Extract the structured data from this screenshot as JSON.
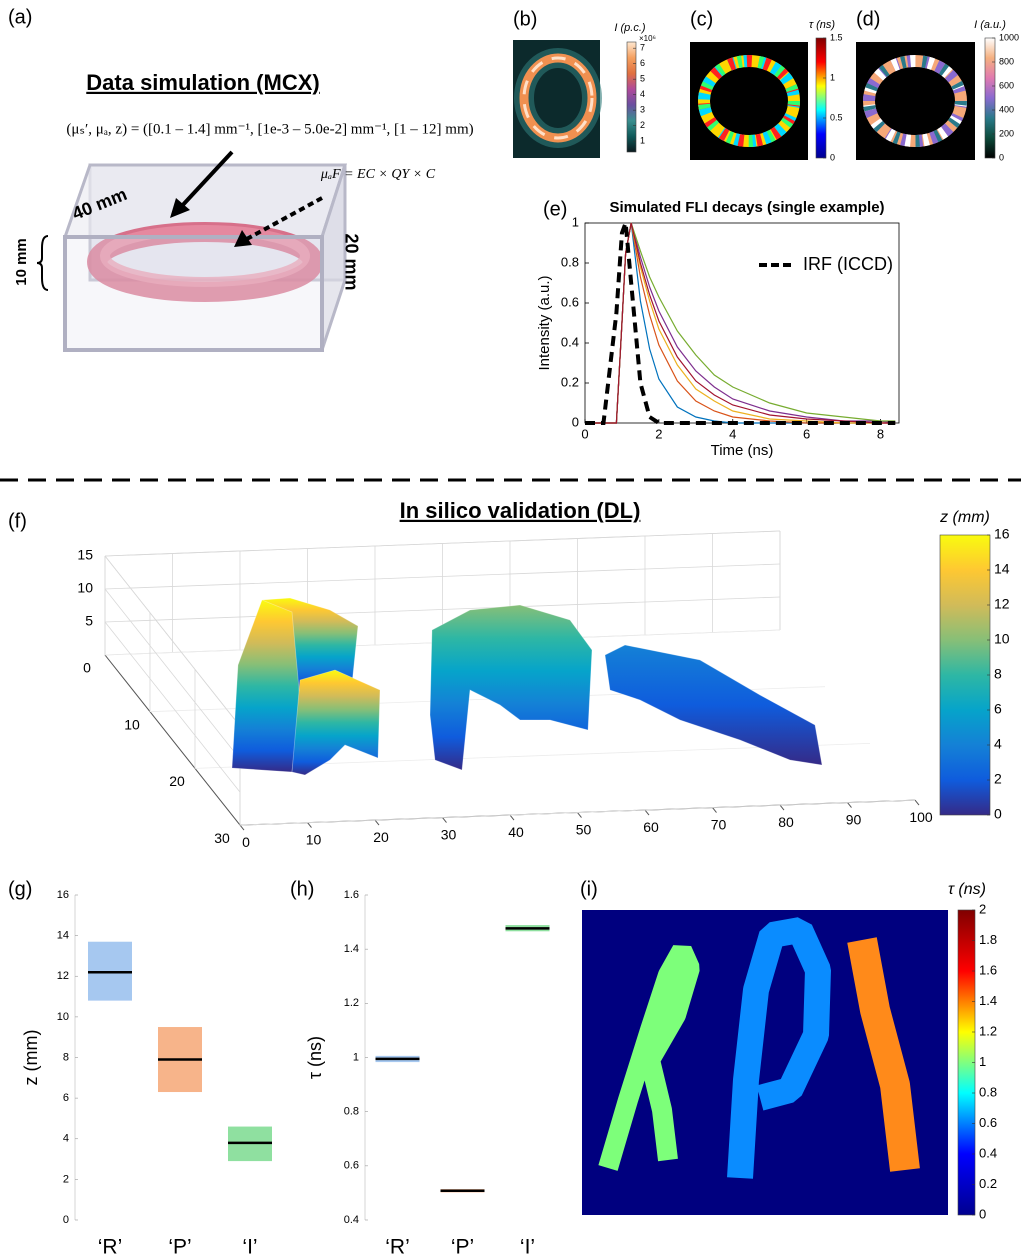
{
  "panel_labels": [
    "(a)",
    "(b)",
    "(c)",
    "(d)",
    "(e)",
    "(f)",
    "(g)",
    "(h)",
    "(i)"
  ],
  "panel_a": {
    "title": "Data simulation (MCX)",
    "parameters": "(μₛ′, μₐ, z) = ([0.1 – 1.4] mm⁻¹, [1e-3 – 5.0e-2] mm⁻¹, [1 – 12] mm)",
    "absorption": "μₐF = EC × QY × C",
    "width": "40 mm",
    "height_top": "10 mm",
    "depth": "20 mm"
  },
  "chart_data": [
    {
      "type": "colorbar",
      "title": "I (p.c.)",
      "exponent": "×10⁶",
      "ylim": [
        0.3,
        7.4
      ],
      "yticks": [
        1,
        2,
        3,
        4,
        5,
        6,
        7
      ],
      "colors": [
        "#0b1a1e",
        "#0f5a5a",
        "#3a8f8f",
        "#6a4fa0",
        "#b04a9a",
        "#e07040",
        "#f5a060",
        "#ffe8d0"
      ]
    },
    {
      "type": "colorbar",
      "title": "τ (ns)",
      "ylim": [
        0,
        1.5
      ],
      "yticks": [
        0,
        0.5,
        1,
        1.5
      ],
      "colors": [
        "#00008f",
        "#0000ff",
        "#00ffff",
        "#ffff00",
        "#ff0000",
        "#800000"
      ]
    },
    {
      "type": "colorbar",
      "title": "I (a.u.)",
      "ylim": [
        0,
        1000
      ],
      "yticks": [
        0,
        200,
        400,
        600,
        800,
        1000
      ],
      "colors": [
        "#000000",
        "#0d4a3a",
        "#2a7a8a",
        "#8a6ad0",
        "#e07ab0",
        "#f5b080",
        "#ffffff"
      ]
    },
    {
      "type": "line",
      "title": "Simulated FLI decays (single example)",
      "xlabel": "Time (ns)",
      "ylabel": "Intensity (a.u.)",
      "x": [
        0,
        0.5,
        0.85,
        1,
        1.1,
        1.25,
        1.5,
        1.75,
        2,
        2.5,
        3,
        3.5,
        4,
        5,
        6,
        7,
        8,
        8.4
      ],
      "xlim": [
        0,
        8.5
      ],
      "xticks": [
        0,
        2,
        4,
        6,
        8
      ],
      "ylim": [
        0,
        1
      ],
      "yticks": [
        0,
        0.2,
        0.4,
        0.6,
        0.8,
        1
      ],
      "legend": "upper right",
      "series": [
        {
          "color": "#0072bd",
          "values": [
            0,
            0,
            0,
            0.5,
            0.85,
            1,
            0.61,
            0.37,
            0.22,
            0.08,
            0.03,
            0.01,
            0,
            0,
            0,
            0,
            0,
            0
          ]
        },
        {
          "color": "#d95319",
          "values": [
            0,
            0,
            0,
            0.5,
            0.85,
            1,
            0.73,
            0.54,
            0.39,
            0.21,
            0.11,
            0.06,
            0.03,
            0.01,
            0,
            0,
            0,
            0
          ]
        },
        {
          "color": "#edb120",
          "values": [
            0,
            0,
            0,
            0.5,
            0.85,
            1,
            0.78,
            0.61,
            0.47,
            0.29,
            0.17,
            0.11,
            0.06,
            0.02,
            0.01,
            0,
            0,
            0
          ]
        },
        {
          "color": "#7e2f8e",
          "values": [
            0,
            0,
            0,
            0.5,
            0.85,
            1,
            0.83,
            0.68,
            0.56,
            0.38,
            0.26,
            0.18,
            0.12,
            0.06,
            0.03,
            0.01,
            0.01,
            0
          ]
        },
        {
          "color": "#77ac30",
          "values": [
            0,
            0,
            0,
            0.5,
            0.85,
            1,
            0.86,
            0.73,
            0.63,
            0.46,
            0.34,
            0.24,
            0.18,
            0.1,
            0.05,
            0.03,
            0.01,
            0.01
          ]
        },
        {
          "color": "#a2142f",
          "values": [
            0,
            0,
            0,
            0.5,
            0.85,
            1,
            0.8,
            0.64,
            0.51,
            0.33,
            0.21,
            0.14,
            0.09,
            0.04,
            0.02,
            0.01,
            0,
            0
          ]
        },
        {
          "name": "IRF (ICCD)",
          "color": "#000000",
          "linestyle": "dashed",
          "values": [
            0,
            0,
            0.55,
            0.95,
            1,
            0.7,
            0.2,
            0.03,
            0,
            0,
            0,
            0,
            0,
            0,
            0,
            0,
            0,
            0
          ]
        }
      ]
    },
    {
      "type": "surface",
      "title": "In silico validation (DL)",
      "xlim": [
        0,
        100
      ],
      "xticks": [
        0,
        10,
        20,
        30,
        40,
        50,
        60,
        70,
        80,
        90,
        100
      ],
      "ylim": [
        0,
        30
      ],
      "yticks": [
        0,
        10,
        20,
        30
      ],
      "zlim": [
        0,
        15
      ],
      "zticks": [
        5,
        10,
        15
      ],
      "grid": true
    },
    {
      "type": "colorbar",
      "title": "z (mm)",
      "ylim": [
        0,
        16
      ],
      "yticks": [
        0,
        2,
        4,
        6,
        8,
        10,
        12,
        14,
        16
      ],
      "colors": [
        "#352a87",
        "#0f5cdd",
        "#1481d6",
        "#06a4ca",
        "#2eb7a4",
        "#87bf77",
        "#d1bb59",
        "#fec832",
        "#f9fb0e"
      ]
    },
    {
      "type": "box",
      "ylabel": "z (mm)",
      "categories": [
        "‘R’",
        "‘P’",
        "‘I’"
      ],
      "values": [
        12.2,
        7.9,
        3.8
      ],
      "lower": [
        10.8,
        6.3,
        2.9
      ],
      "upper": [
        13.7,
        9.5,
        4.6
      ],
      "colors": [
        "#a6c8f0",
        "#f7b48a",
        "#8fe0a0"
      ],
      "median_color": "#000000",
      "ylim": [
        0,
        16
      ],
      "yticks": [
        0,
        2,
        4,
        6,
        8,
        10,
        12,
        14,
        16
      ]
    },
    {
      "type": "box",
      "ylabel": "τ (ns)",
      "categories": [
        "‘R’",
        "‘P’",
        "‘I’"
      ],
      "values": [
        0.995,
        0.508,
        1.477
      ],
      "lower": [
        0.983,
        0.502,
        1.466
      ],
      "upper": [
        1.006,
        0.514,
        1.489
      ],
      "colors": [
        "#a6c8f0",
        "#f7b48a",
        "#8fe0a0"
      ],
      "median_color": "#000000",
      "ylim": [
        0.4,
        1.6
      ],
      "yticks": [
        0.4,
        0.6,
        0.8,
        1,
        1.2,
        1.4,
        1.6
      ]
    },
    {
      "type": "colorbar",
      "title": "τ (ns)",
      "ylim": [
        0,
        2
      ],
      "yticks": [
        0,
        0.2,
        0.4,
        0.6,
        0.8,
        1,
        1.2,
        1.4,
        1.6,
        1.8,
        2
      ],
      "colors": [
        "#00008f",
        "#0000ff",
        "#00ffff",
        "#ffff00",
        "#ff0000",
        "#800000"
      ]
    }
  ]
}
